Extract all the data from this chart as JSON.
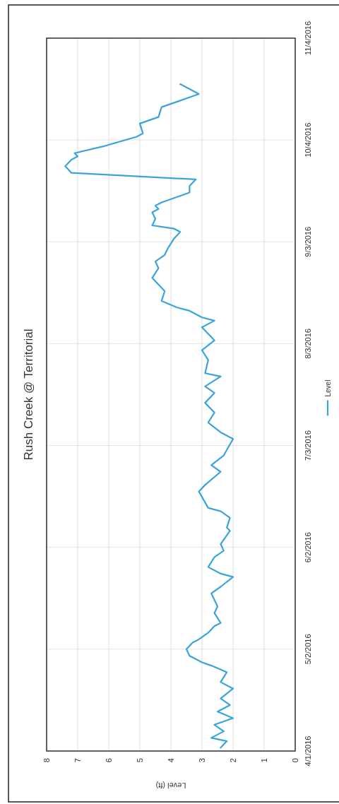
{
  "chart_data": {
    "type": "line",
    "title": "Rush Creek @ Territorial",
    "xlabel": "Level (ft)",
    "orientation": "horizontal",
    "x": [
      "2016-04-02",
      "2016-04-04",
      "2016-04-05",
      "2016-04-07",
      "2016-04-09",
      "2016-04-11",
      "2016-04-13",
      "2016-04-15",
      "2016-04-17",
      "2016-04-20",
      "2016-04-22",
      "2016-04-25",
      "2016-04-27",
      "2016-04-28",
      "2016-04-30",
      "2016-05-02",
      "2016-05-04",
      "2016-05-05",
      "2016-05-07",
      "2016-05-09",
      "2016-05-10",
      "2016-05-13",
      "2016-05-15",
      "2016-05-19",
      "2016-05-21",
      "2016-05-24",
      "2016-05-25",
      "2016-05-27",
      "2016-05-30",
      "2016-06-01",
      "2016-06-03",
      "2016-06-07",
      "2016-06-08",
      "2016-06-11",
      "2016-06-13",
      "2016-06-14",
      "2016-06-19",
      "2016-06-21",
      "2016-06-25",
      "2016-06-27",
      "2016-06-30",
      "2016-07-05",
      "2016-07-07",
      "2016-07-10",
      "2016-07-13",
      "2016-07-16",
      "2016-07-19",
      "2016-07-21",
      "2016-07-24",
      "2016-07-25",
      "2016-07-29",
      "2016-08-01",
      "2016-08-04",
      "2016-08-08",
      "2016-08-10",
      "2016-08-11",
      "2016-08-13",
      "2016-08-14",
      "2016-08-16",
      "2016-08-19",
      "2016-08-21",
      "2016-08-23",
      "2016-08-26",
      "2016-08-28",
      "2016-08-30",
      "2016-09-01",
      "2016-09-04",
      "2016-09-06",
      "2016-09-07",
      "2016-09-08",
      "2016-09-10",
      "2016-09-12",
      "2016-09-13",
      "2016-09-14",
      "2016-09-15",
      "2016-09-17",
      "2016-09-18",
      "2016-09-20",
      "2016-09-22",
      "2016-09-24",
      "2016-09-26",
      "2016-09-28",
      "2016-09-29",
      "2016-09-30",
      "2016-10-02",
      "2016-10-05",
      "2016-10-06",
      "2016-10-09",
      "2016-10-11",
      "2016-10-14",
      "2016-10-16",
      "2016-10-17",
      "2016-10-18",
      "2016-10-21"
    ],
    "series": [
      {
        "name": "Level",
        "color": "#3aa3dc",
        "values": [
          2.4,
          2.2,
          2.7,
          2.3,
          2.6,
          2.0,
          2.5,
          2.1,
          2.4,
          2.0,
          2.4,
          2.2,
          2.7,
          3.0,
          3.4,
          3.5,
          3.3,
          3.1,
          2.8,
          2.6,
          2.4,
          2.6,
          2.5,
          2.7,
          2.4,
          2.0,
          2.4,
          2.8,
          2.6,
          2.3,
          2.4,
          2.1,
          2.2,
          2.1,
          2.4,
          2.8,
          3.1,
          2.9,
          2.4,
          2.7,
          2.3,
          2.0,
          2.4,
          2.8,
          2.6,
          2.9,
          2.6,
          2.9,
          2.4,
          2.9,
          2.8,
          3.0,
          2.6,
          3.0,
          2.6,
          3.0,
          3.4,
          3.8,
          4.3,
          4.2,
          4.4,
          4.6,
          4.4,
          4.5,
          4.2,
          4.1,
          3.9,
          3.7,
          3.9,
          4.6,
          4.5,
          4.6,
          4.4,
          4.5,
          4.3,
          3.7,
          3.4,
          3.4,
          3.2,
          7.2,
          7.4,
          7.2,
          7.0,
          7.1,
          6.2,
          5.1,
          4.9,
          5.0,
          4.4,
          4.3,
          3.7,
          3.4,
          3.1,
          3.7
        ]
      }
    ],
    "ylim": [
      "2016-04-01",
      "2016-11-04"
    ],
    "yticks": [
      {
        "value": "2016-04-01",
        "label": "4/1/2016"
      },
      {
        "value": "2016-05-02",
        "label": "5/2/2016"
      },
      {
        "value": "2016-06-02",
        "label": "6/2/2016"
      },
      {
        "value": "2016-07-03",
        "label": "7/3/2016"
      },
      {
        "value": "2016-08-03",
        "label": "8/3/2016"
      },
      {
        "value": "2016-09-03",
        "label": "9/3/2016"
      },
      {
        "value": "2016-10-04",
        "label": "10/4/2016"
      },
      {
        "value": "2016-11-04",
        "label": "11/4/2016"
      }
    ],
    "xlim": [
      8,
      0
    ],
    "xticks": [
      8,
      7,
      6,
      5,
      4,
      3,
      2,
      1,
      0
    ],
    "grid": true,
    "legend": "right"
  }
}
